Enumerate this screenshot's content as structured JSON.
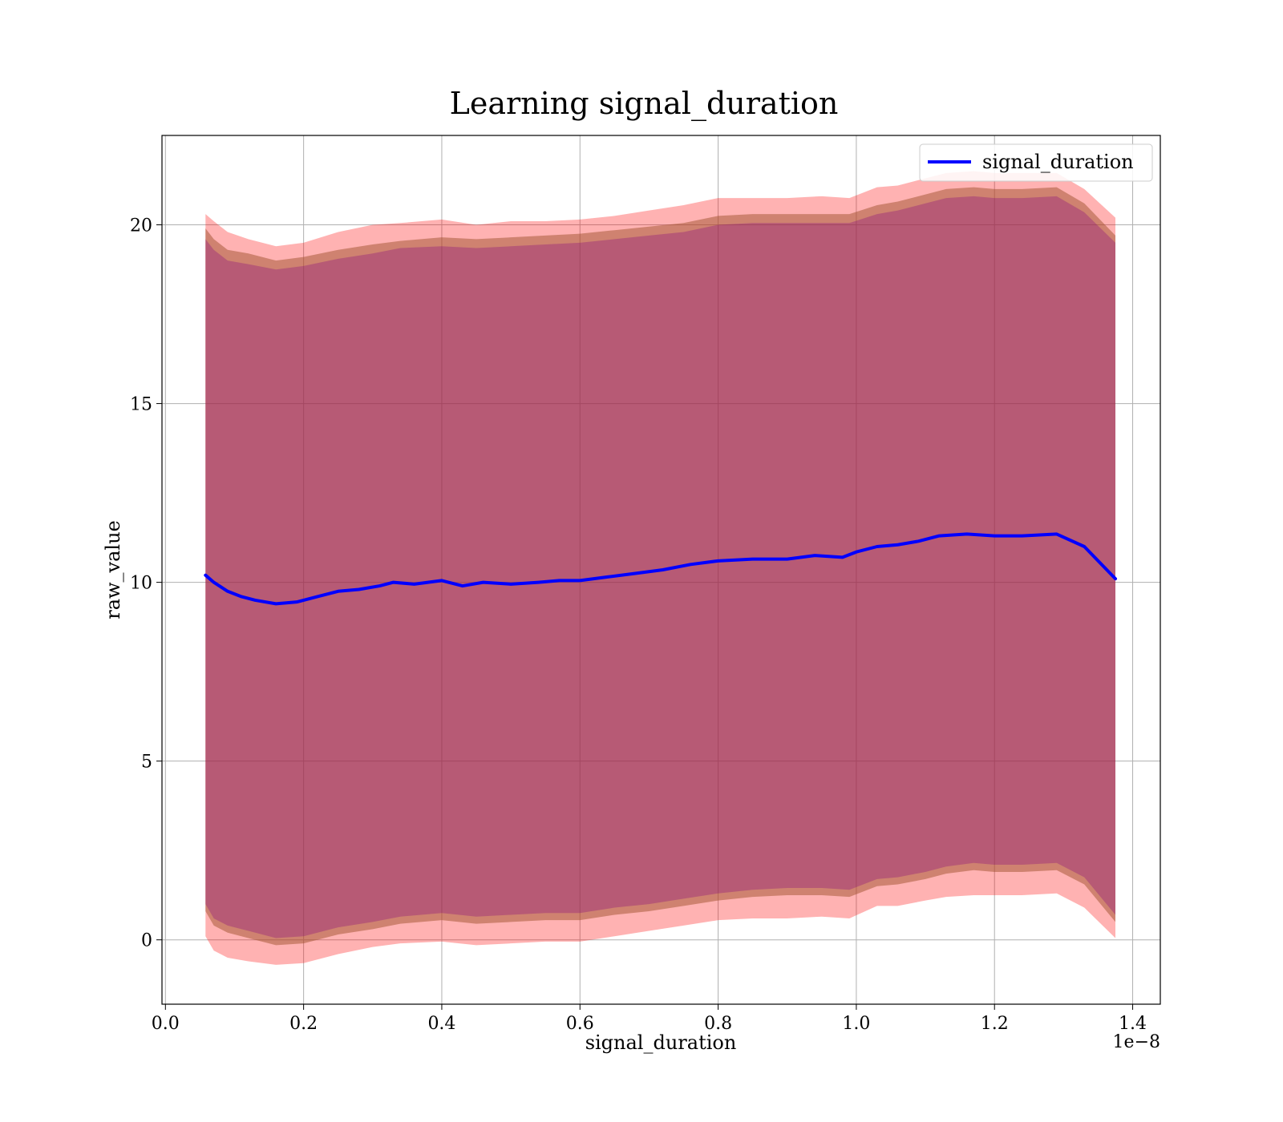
{
  "chart_data": {
    "type": "line",
    "title": "Learning signal_duration",
    "xlabel": "signal_duration",
    "ylabel": "raw_value",
    "x_offset_label": "1e−8",
    "x_scale": 1e-08,
    "xlim": [
      -0.005,
      1.44
    ],
    "ylim": [
      -1.8,
      22.5
    ],
    "x_ticks": [
      0.0,
      0.2,
      0.4,
      0.6,
      0.8,
      1.0,
      1.2,
      1.4
    ],
    "x_tick_labels": [
      "0.0",
      "0.2",
      "0.4",
      "0.6",
      "0.8",
      "1.0",
      "1.2",
      "1.4"
    ],
    "y_ticks": [
      0,
      5,
      10,
      15,
      20
    ],
    "y_tick_labels": [
      "0",
      "5",
      "10",
      "15",
      "20"
    ],
    "grid": true,
    "legend_position": "top-right",
    "series": [
      {
        "name": "signal_duration",
        "color": "#0000ff",
        "x": [
          0.058,
          0.07,
          0.09,
          0.11,
          0.13,
          0.16,
          0.19,
          0.22,
          0.25,
          0.28,
          0.31,
          0.33,
          0.36,
          0.38,
          0.4,
          0.43,
          0.46,
          0.5,
          0.54,
          0.57,
          0.6,
          0.64,
          0.68,
          0.72,
          0.76,
          0.8,
          0.85,
          0.88,
          0.9,
          0.94,
          0.98,
          1.0,
          1.03,
          1.06,
          1.09,
          1.12,
          1.16,
          1.2,
          1.24,
          1.29,
          1.33,
          1.375
        ],
        "y": [
          10.2,
          10.0,
          9.75,
          9.6,
          9.5,
          9.4,
          9.45,
          9.6,
          9.75,
          9.8,
          9.9,
          10.0,
          9.95,
          10.0,
          10.05,
          9.9,
          10.0,
          9.95,
          10.0,
          10.05,
          10.05,
          10.15,
          10.25,
          10.35,
          10.5,
          10.6,
          10.65,
          10.65,
          10.65,
          10.75,
          10.7,
          10.85,
          11.0,
          11.05,
          11.15,
          11.3,
          11.35,
          11.3,
          11.3,
          11.35,
          11.0,
          10.1
        ]
      }
    ],
    "bands": [
      {
        "color": "#ff0000",
        "opacity": 0.3,
        "x": [
          0.058,
          0.07,
          0.09,
          0.12,
          0.16,
          0.2,
          0.25,
          0.3,
          0.34,
          0.4,
          0.45,
          0.5,
          0.55,
          0.6,
          0.65,
          0.7,
          0.75,
          0.8,
          0.85,
          0.9,
          0.95,
          0.99,
          1.03,
          1.06,
          1.1,
          1.13,
          1.17,
          1.2,
          1.24,
          1.29,
          1.33,
          1.375
        ],
        "upper": [
          20.3,
          20.1,
          19.8,
          19.6,
          19.4,
          19.5,
          19.8,
          20.0,
          20.05,
          20.15,
          20.0,
          20.1,
          20.1,
          20.15,
          20.25,
          20.4,
          20.55,
          20.75,
          20.75,
          20.75,
          20.8,
          20.75,
          21.05,
          21.1,
          21.3,
          21.45,
          21.5,
          21.45,
          21.45,
          21.45,
          21.0,
          20.2
        ],
        "lower": [
          0.1,
          -0.3,
          -0.5,
          -0.6,
          -0.7,
          -0.65,
          -0.4,
          -0.2,
          -0.1,
          -0.05,
          -0.15,
          -0.1,
          -0.05,
          -0.05,
          0.1,
          0.25,
          0.4,
          0.55,
          0.6,
          0.6,
          0.65,
          0.6,
          0.95,
          0.95,
          1.1,
          1.2,
          1.25,
          1.25,
          1.25,
          1.3,
          0.9,
          0.05
        ]
      },
      {
        "color": "#a0522d",
        "opacity": 0.5,
        "x": [
          0.058,
          0.07,
          0.09,
          0.12,
          0.16,
          0.2,
          0.25,
          0.3,
          0.34,
          0.4,
          0.45,
          0.5,
          0.55,
          0.6,
          0.65,
          0.7,
          0.75,
          0.8,
          0.85,
          0.9,
          0.95,
          0.99,
          1.03,
          1.06,
          1.1,
          1.13,
          1.17,
          1.2,
          1.24,
          1.29,
          1.33,
          1.375
        ],
        "upper": [
          19.9,
          19.6,
          19.3,
          19.2,
          19.0,
          19.1,
          19.3,
          19.45,
          19.55,
          19.65,
          19.6,
          19.65,
          19.7,
          19.75,
          19.85,
          19.95,
          20.05,
          20.25,
          20.3,
          20.3,
          20.3,
          20.3,
          20.55,
          20.65,
          20.85,
          21.0,
          21.05,
          21.0,
          21.0,
          21.05,
          20.6,
          19.7
        ],
        "lower": [
          0.8,
          0.4,
          0.2,
          0.05,
          -0.15,
          -0.1,
          0.15,
          0.3,
          0.45,
          0.55,
          0.45,
          0.5,
          0.55,
          0.55,
          0.7,
          0.8,
          0.95,
          1.1,
          1.2,
          1.25,
          1.25,
          1.2,
          1.5,
          1.55,
          1.7,
          1.85,
          1.95,
          1.9,
          1.9,
          1.95,
          1.55,
          0.5
        ]
      },
      {
        "color": "#800080",
        "opacity": 0.3,
        "x": [
          0.058,
          0.07,
          0.09,
          0.12,
          0.16,
          0.2,
          0.25,
          0.3,
          0.34,
          0.4,
          0.45,
          0.5,
          0.55,
          0.6,
          0.65,
          0.7,
          0.75,
          0.8,
          0.85,
          0.9,
          0.95,
          0.99,
          1.03,
          1.06,
          1.1,
          1.13,
          1.17,
          1.2,
          1.24,
          1.29,
          1.33,
          1.375
        ],
        "upper": [
          19.6,
          19.3,
          19.0,
          18.9,
          18.75,
          18.85,
          19.05,
          19.2,
          19.35,
          19.4,
          19.35,
          19.4,
          19.45,
          19.5,
          19.6,
          19.7,
          19.8,
          20.0,
          20.05,
          20.05,
          20.05,
          20.05,
          20.3,
          20.4,
          20.6,
          20.75,
          20.8,
          20.75,
          20.75,
          20.8,
          20.35,
          19.5
        ],
        "lower": [
          1.0,
          0.6,
          0.4,
          0.25,
          0.05,
          0.1,
          0.35,
          0.5,
          0.65,
          0.75,
          0.65,
          0.7,
          0.75,
          0.75,
          0.9,
          1.0,
          1.15,
          1.3,
          1.4,
          1.45,
          1.45,
          1.4,
          1.7,
          1.75,
          1.9,
          2.05,
          2.15,
          2.1,
          2.1,
          2.15,
          1.75,
          0.7
        ]
      }
    ]
  }
}
